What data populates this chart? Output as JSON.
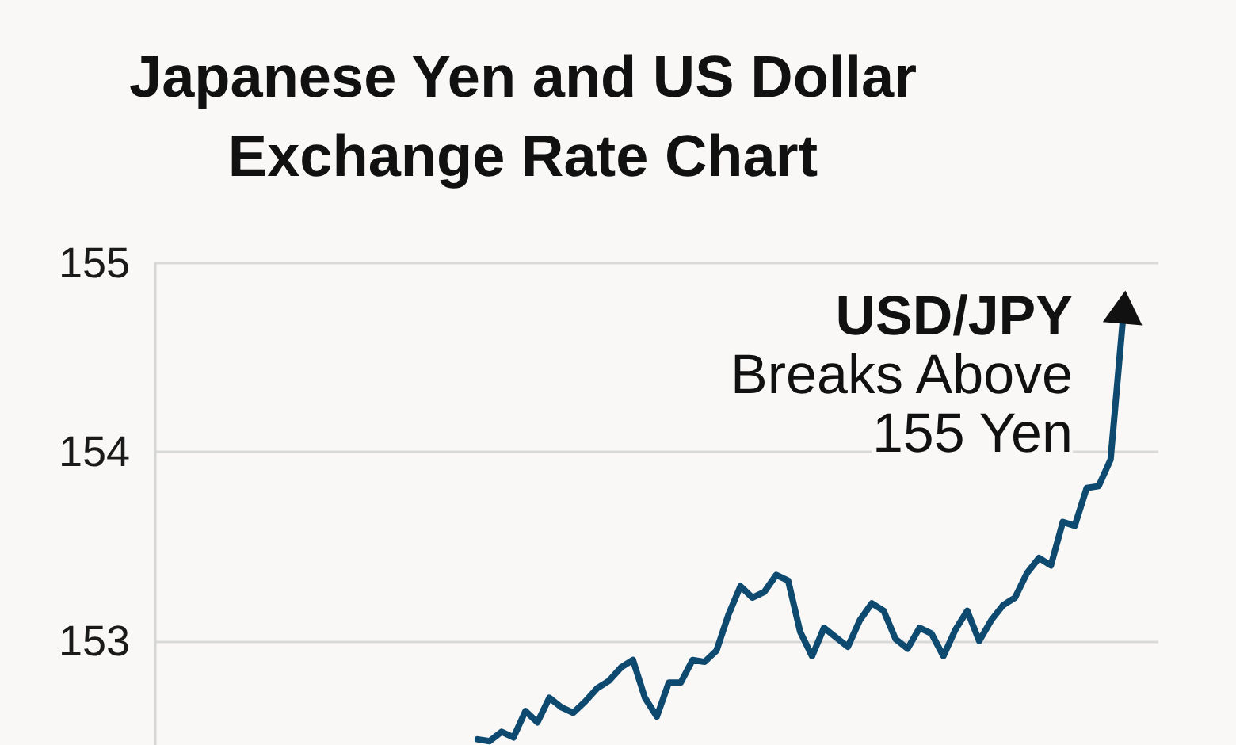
{
  "chart_data": {
    "type": "line",
    "title": "Japanese Yen and US Dollar Exchange Rate Chart",
    "annotations": [
      "USD/JPY",
      "Breaks Above 155 Yen"
    ],
    "categories": [
      null,
      null,
      null,
      null,
      null,
      null,
      null,
      null,
      null,
      null,
      null,
      null,
      null,
      null,
      null,
      null,
      null,
      null,
      null,
      null,
      null,
      null,
      null,
      null,
      null,
      null,
      null,
      null,
      null,
      null,
      null,
      null,
      null,
      null,
      null,
      null,
      null,
      null,
      null,
      null,
      null,
      null,
      null,
      null,
      null,
      null,
      null,
      null,
      null,
      null,
      null,
      null,
      null,
      null,
      null,
      null,
      null,
      null,
      null,
      null,
      null,
      null,
      null,
      null,
      null,
      null,
      null,
      null,
      null,
      null,
      null,
      null,
      null,
      null,
      null,
      null,
      null,
      null,
      null,
      null,
      null,
      null,
      null,
      null,
      null
    ],
    "series": [
      {
        "color": "#0e4a70",
        "values": [
          null,
          null,
          null,
          null,
          null,
          null,
          null,
          null,
          null,
          null,
          null,
          null,
          null,
          null,
          null,
          null,
          null,
          null,
          null,
          null,
          null,
          null,
          null,
          null,
          null,
          null,
          null,
          152.48,
          152.47,
          152.52,
          152.49,
          152.63,
          152.57,
          152.7,
          152.65,
          152.62,
          152.68,
          152.75,
          152.79,
          152.86,
          152.9,
          152.7,
          152.6,
          152.78,
          152.78,
          152.9,
          152.89,
          152.95,
          153.14,
          153.29,
          153.23,
          153.26,
          153.35,
          153.32,
          153.05,
          152.92,
          153.07,
          153.02,
          152.97,
          153.11,
          153.2,
          153.16,
          153.01,
          152.96,
          153.07,
          153.04,
          152.92,
          153.06,
          153.16,
          153.0,
          153.11,
          153.19,
          153.23,
          153.36,
          153.44,
          153.4,
          153.63,
          153.61,
          153.81,
          153.82,
          153.96,
          154.68,
          null,
          null,
          null
        ]
      }
    ],
    "ylim": [
      152.45,
      155
    ],
    "yticks": [
      153,
      154,
      155
    ],
    "grid": "y",
    "tick_labels": "y",
    "line_style": "solid"
  }
}
